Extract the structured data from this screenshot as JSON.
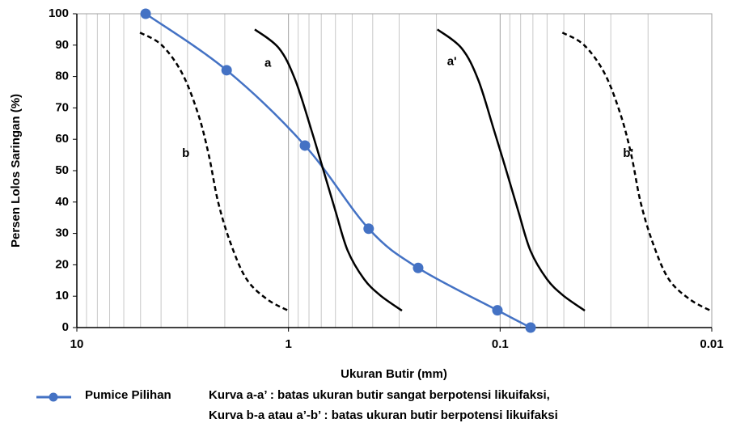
{
  "chart_data": {
    "type": "line",
    "xlabel": "Ukuran Butir (mm)",
    "ylabel": "Persen Lolos Saringan (%)",
    "xscale": "log",
    "xlim": [
      10,
      0.01
    ],
    "xticks": [
      10,
      1,
      0.1,
      0.01
    ],
    "ylim": [
      0,
      100
    ],
    "yticks": [
      0,
      10,
      20,
      30,
      40,
      50,
      60,
      70,
      80,
      90,
      100
    ],
    "grid": true,
    "series": [
      {
        "name": "Pumice Pilihan",
        "color": "#4472c4",
        "style": "solid",
        "marker": true,
        "x": [
          4.73,
          1.96,
          0.836,
          0.418,
          0.244,
          0.103,
          0.0718
        ],
        "values": [
          100,
          82,
          58,
          31.5,
          19,
          5.5,
          0
        ]
      },
      {
        "name": "a",
        "color": "#000000",
        "style": "solid",
        "marker": false,
        "x": [
          1.443,
          1.109,
          0.93,
          0.78,
          0.683,
          0.599,
          0.525,
          0.44,
          0.369,
          0.291
        ],
        "values": [
          95,
          89,
          79,
          63,
          50,
          37,
          24.5,
          15.5,
          10.3,
          5.4
        ]
      },
      {
        "name": "a'",
        "color": "#000000",
        "style": "solid",
        "marker": false,
        "x": [
          0.198,
          0.152,
          0.127,
          0.107,
          0.0935,
          0.082,
          0.0719,
          0.0602,
          0.0505,
          0.0398
        ],
        "values": [
          95,
          89,
          79,
          63,
          50,
          37,
          24.5,
          15.5,
          10.3,
          5.4
        ]
      },
      {
        "name": "b",
        "color": "#000000",
        "style": "dashed",
        "marker": false,
        "x": [
          5.03,
          3.97,
          3.18,
          2.67,
          2.38,
          2.15,
          1.88,
          1.58,
          1.26,
          0.989
        ],
        "values": [
          94,
          90,
          81,
          68,
          55,
          40,
          27,
          15.5,
          9,
          5.2
        ]
      },
      {
        "name": "b'",
        "color": "#000000",
        "style": "dashed",
        "marker": false,
        "x": [
          0.0508,
          0.0401,
          0.0321,
          0.027,
          0.024,
          0.0217,
          0.019,
          0.016,
          0.0127,
          0.01
        ],
        "values": [
          94,
          90,
          81,
          68,
          55,
          40,
          27,
          15.5,
          9,
          5.2
        ]
      }
    ],
    "legend_series": 0,
    "note": [
      "Kurva a-a’ : batas ukuran butir sangat berpotensi likuifaksi,",
      "Kurva b-a atau a’-b’ : batas ukuran butir berpotensi likuifaksi"
    ]
  }
}
